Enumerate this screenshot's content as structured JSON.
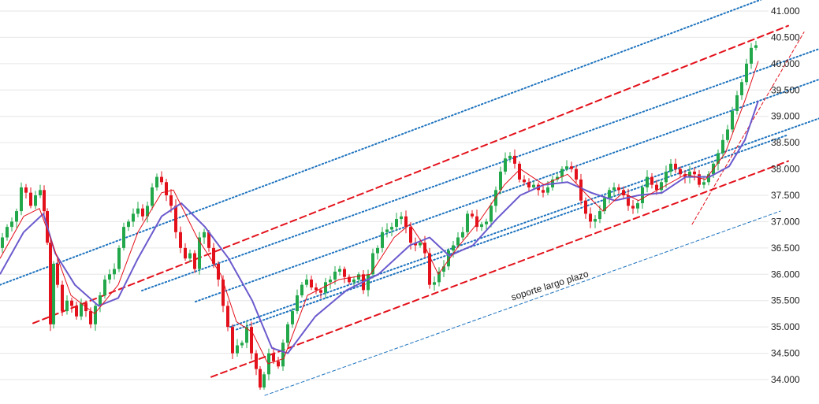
{
  "chart_data": {
    "type": "candlestick",
    "title": "",
    "xlabel": "",
    "ylabel": "",
    "ylim": [
      33700,
      41250
    ],
    "y_ticks": [
      "41.000",
      "40.500",
      "40.000",
      "39.500",
      "39.000",
      "38.500",
      "38.000",
      "37.500",
      "37.000",
      "36.500",
      "36.000",
      "35.500",
      "35.000",
      "34.500",
      "34.000"
    ],
    "y_tick_values": [
      41000,
      40500,
      40000,
      39500,
      39000,
      38500,
      38000,
      37500,
      37000,
      36500,
      36000,
      35500,
      35000,
      34500,
      34000
    ],
    "grid": true,
    "legend": "none",
    "colors": {
      "up": "#22a84a",
      "down": "#e3111b",
      "ma_fast": "#e3111b",
      "ma_slow": "#6a5acd",
      "channel_red": "#e3111b",
      "channel_blue": "#1e73be",
      "grid": "#e6e6e6"
    },
    "close_path": [
      [
        0,
        36500
      ],
      [
        6,
        36700
      ],
      [
        12,
        36900
      ],
      [
        18,
        37000
      ],
      [
        24,
        37200
      ],
      [
        30,
        37650
      ],
      [
        36,
        37550
      ],
      [
        42,
        37300
      ],
      [
        48,
        37500
      ],
      [
        54,
        37600
      ],
      [
        58,
        37200
      ],
      [
        62,
        36600
      ],
      [
        66,
        35050
      ],
      [
        70,
        36200
      ],
      [
        76,
        35800
      ],
      [
        82,
        35300
      ],
      [
        88,
        35500
      ],
      [
        94,
        35400
      ],
      [
        100,
        35200
      ],
      [
        106,
        35450
      ],
      [
        112,
        35300
      ],
      [
        118,
        35050
      ],
      [
        124,
        35400
      ],
      [
        130,
        35600
      ],
      [
        136,
        35900
      ],
      [
        142,
        36000
      ],
      [
        148,
        36100
      ],
      [
        154,
        36500
      ],
      [
        160,
        36900
      ],
      [
        166,
        37000
      ],
      [
        172,
        37150
      ],
      [
        178,
        37250
      ],
      [
        184,
        37100
      ],
      [
        190,
        37300
      ],
      [
        196,
        37650
      ],
      [
        202,
        37850
      ],
      [
        208,
        37750
      ],
      [
        214,
        37500
      ],
      [
        220,
        37300
      ],
      [
        226,
        36800
      ],
      [
        232,
        36500
      ],
      [
        238,
        36300
      ],
      [
        244,
        36400
      ],
      [
        250,
        36100
      ],
      [
        256,
        36700
      ],
      [
        262,
        36800
      ],
      [
        268,
        36500
      ],
      [
        274,
        36200
      ],
      [
        280,
        35900
      ],
      [
        286,
        35400
      ],
      [
        292,
        35000
      ],
      [
        298,
        34500
      ],
      [
        304,
        34650
      ],
      [
        310,
        34700
      ],
      [
        316,
        35000
      ],
      [
        322,
        34500
      ],
      [
        328,
        34200
      ],
      [
        332,
        33850
      ],
      [
        338,
        34100
      ],
      [
        344,
        34500
      ],
      [
        350,
        34350
      ],
      [
        356,
        34250
      ],
      [
        362,
        34700
      ],
      [
        368,
        35050
      ],
      [
        374,
        35300
      ],
      [
        380,
        35600
      ],
      [
        386,
        35800
      ],
      [
        392,
        35900
      ],
      [
        398,
        35750
      ],
      [
        404,
        35700
      ],
      [
        410,
        35650
      ],
      [
        416,
        35850
      ],
      [
        422,
        35900
      ],
      [
        428,
        36050
      ],
      [
        434,
        36100
      ],
      [
        440,
        35950
      ],
      [
        446,
        35850
      ],
      [
        452,
        35900
      ],
      [
        458,
        36000
      ],
      [
        464,
        35700
      ],
      [
        470,
        36000
      ],
      [
        476,
        36400
      ],
      [
        482,
        36500
      ],
      [
        488,
        36800
      ],
      [
        494,
        36850
      ],
      [
        500,
        36900
      ],
      [
        506,
        37050
      ],
      [
        512,
        37100
      ],
      [
        518,
        36900
      ],
      [
        524,
        36600
      ],
      [
        530,
        36550
      ],
      [
        536,
        36600
      ],
      [
        542,
        36400
      ],
      [
        548,
        35800
      ],
      [
        554,
        35850
      ],
      [
        560,
        36050
      ],
      [
        566,
        36150
      ],
      [
        572,
        36450
      ],
      [
        578,
        36550
      ],
      [
        584,
        36700
      ],
      [
        590,
        36800
      ],
      [
        596,
        37150
      ],
      [
        602,
        37100
      ],
      [
        608,
        36900
      ],
      [
        614,
        36950
      ],
      [
        620,
        37000
      ],
      [
        626,
        37300
      ],
      [
        632,
        37600
      ],
      [
        638,
        37950
      ],
      [
        644,
        38200
      ],
      [
        650,
        38250
      ],
      [
        656,
        38100
      ],
      [
        662,
        37800
      ],
      [
        668,
        37750
      ],
      [
        674,
        37650
      ],
      [
        680,
        37700
      ],
      [
        686,
        37600
      ],
      [
        692,
        37550
      ],
      [
        698,
        37650
      ],
      [
        704,
        37800
      ],
      [
        710,
        37850
      ],
      [
        716,
        38000
      ],
      [
        722,
        38050
      ],
      [
        728,
        38000
      ],
      [
        734,
        37800
      ],
      [
        740,
        37400
      ],
      [
        746,
        37150
      ],
      [
        752,
        37000
      ],
      [
        758,
        37050
      ],
      [
        764,
        37200
      ],
      [
        770,
        37450
      ],
      [
        776,
        37600
      ],
      [
        782,
        37650
      ],
      [
        788,
        37600
      ],
      [
        794,
        37500
      ],
      [
        800,
        37300
      ],
      [
        806,
        37250
      ],
      [
        812,
        37350
      ],
      [
        818,
        37650
      ],
      [
        824,
        37850
      ],
      [
        830,
        37700
      ],
      [
        836,
        37600
      ],
      [
        842,
        37750
      ],
      [
        848,
        37950
      ],
      [
        854,
        38100
      ],
      [
        860,
        38000
      ],
      [
        866,
        37900
      ],
      [
        872,
        37850
      ],
      [
        878,
        37950
      ],
      [
        884,
        37900
      ],
      [
        890,
        37700
      ],
      [
        896,
        37750
      ],
      [
        902,
        37900
      ],
      [
        908,
        38100
      ],
      [
        914,
        38300
      ],
      [
        920,
        38550
      ],
      [
        926,
        38750
      ],
      [
        932,
        39100
      ],
      [
        938,
        39400
      ],
      [
        944,
        39650
      ],
      [
        950,
        40000
      ],
      [
        956,
        40300
      ],
      [
        962,
        40350
      ]
    ],
    "ma_fast": [
      [
        0,
        36300
      ],
      [
        30,
        37100
      ],
      [
        50,
        37250
      ],
      [
        66,
        36600
      ],
      [
        90,
        35600
      ],
      [
        120,
        35250
      ],
      [
        150,
        35800
      ],
      [
        175,
        36800
      ],
      [
        205,
        37550
      ],
      [
        220,
        37600
      ],
      [
        250,
        36700
      ],
      [
        280,
        36000
      ],
      [
        300,
        35100
      ],
      [
        320,
        34900
      ],
      [
        340,
        34300
      ],
      [
        360,
        34400
      ],
      [
        390,
        35600
      ],
      [
        430,
        35900
      ],
      [
        470,
        36000
      ],
      [
        500,
        36700
      ],
      [
        520,
        36950
      ],
      [
        540,
        36500
      ],
      [
        556,
        36000
      ],
      [
        580,
        36500
      ],
      [
        610,
        37050
      ],
      [
        640,
        37700
      ],
      [
        660,
        38000
      ],
      [
        690,
        37700
      ],
      [
        720,
        37900
      ],
      [
        745,
        37500
      ],
      [
        765,
        37200
      ],
      [
        790,
        37550
      ],
      [
        810,
        37400
      ],
      [
        840,
        37650
      ],
      [
        870,
        37900
      ],
      [
        895,
        37800
      ],
      [
        920,
        38300
      ],
      [
        945,
        39300
      ],
      [
        962,
        40050
      ]
    ],
    "ma_slow": [
      [
        0,
        36000
      ],
      [
        30,
        36800
      ],
      [
        55,
        37150
      ],
      [
        70,
        36400
      ],
      [
        95,
        35800
      ],
      [
        125,
        35400
      ],
      [
        150,
        35550
      ],
      [
        175,
        36300
      ],
      [
        205,
        37100
      ],
      [
        230,
        37350
      ],
      [
        260,
        36900
      ],
      [
        290,
        36300
      ],
      [
        320,
        35500
      ],
      [
        345,
        34600
      ],
      [
        365,
        34500
      ],
      [
        400,
        35200
      ],
      [
        440,
        35700
      ],
      [
        480,
        36000
      ],
      [
        520,
        36550
      ],
      [
        545,
        36700
      ],
      [
        570,
        36350
      ],
      [
        600,
        36550
      ],
      [
        630,
        37050
      ],
      [
        660,
        37500
      ],
      [
        690,
        37700
      ],
      [
        720,
        37750
      ],
      [
        750,
        37550
      ],
      [
        780,
        37400
      ],
      [
        810,
        37500
      ],
      [
        840,
        37550
      ],
      [
        870,
        37850
      ],
      [
        900,
        37850
      ],
      [
        925,
        38050
      ],
      [
        945,
        38550
      ],
      [
        962,
        39300
      ]
    ],
    "channel_lines": [
      {
        "style": "red-dashed",
        "from": [
          42,
          35070
        ],
        "to": [
          1000,
          40720
        ]
      },
      {
        "style": "red-dashed",
        "from": [
          268,
          34050
        ],
        "to": [
          1000,
          38150
        ]
      },
      {
        "style": "blue-dotted",
        "from": [
          0,
          35800
        ],
        "to": [
          1039,
          41630
        ]
      },
      {
        "style": "blue-dotted",
        "from": [
          180,
          35690
        ],
        "to": [
          1039,
          40280
        ]
      },
      {
        "style": "blue-dotted",
        "from": [
          248,
          35480
        ],
        "to": [
          1039,
          39700
        ]
      },
      {
        "style": "blue-dotted",
        "from": [
          292,
          35000
        ],
        "to": [
          1039,
          38960
        ]
      },
      {
        "style": "blue-dotted",
        "from": [
          0,
          36000
        ],
        "to": [
          0,
          36000
        ]
      },
      {
        "style": "blue-dotted",
        "from": [
          300,
          34950
        ],
        "to": [
          1000,
          38650
        ]
      },
      {
        "style": "blue-dashed-thin",
        "from": [
          336,
          33700
        ],
        "to": [
          990,
          37200
        ]
      },
      {
        "style": "red-dashed-thin",
        "from": [
          878,
          36950
        ],
        "to": [
          1020,
          40600
        ]
      }
    ],
    "annotations": [
      {
        "text": "soporte  largo plazo",
        "x": 650,
        "y": 35500
      }
    ]
  }
}
